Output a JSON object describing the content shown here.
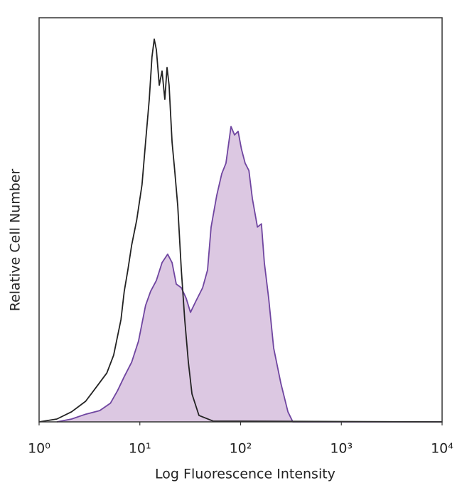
{
  "chart_data": {
    "type": "area",
    "xlabel": "Log Fluorescence Intensity",
    "ylabel": "Relative Cell Number",
    "xscale": "log",
    "xlim": [
      1,
      10000
    ],
    "xticks": [
      {
        "value": 1,
        "label": "10⁰"
      },
      {
        "value": 10,
        "label": "10¹"
      },
      {
        "value": 100,
        "label": "10²"
      },
      {
        "value": 1000,
        "label": "10³"
      },
      {
        "value": 10000,
        "label": "10⁴"
      }
    ],
    "ylim": [
      0,
      100
    ],
    "series": [
      {
        "color": "#6f45a0",
        "fill": "#dcc8e2",
        "x": [
          1.5,
          2.1,
          2.9,
          4.0,
          5.1,
          6.0,
          7.0,
          8.3,
          9.7,
          11.4,
          12.8,
          14.6,
          16.6,
          18.9,
          20.9,
          23.0,
          25.8,
          28.8,
          31.8,
          35.7,
          42.0,
          47.0,
          51.0,
          58.0,
          65.0,
          71.6,
          80.3,
          87.1,
          94.4,
          102,
          111,
          121,
          131,
          147,
          161,
          172,
          190,
          213,
          251,
          295,
          330,
          10000
        ],
        "values": [
          0,
          0.7,
          1.9,
          2.8,
          4.6,
          7.7,
          11.2,
          14.8,
          20.0,
          28.8,
          32.3,
          35.0,
          39.4,
          41.5,
          39.4,
          34.1,
          33.2,
          30.6,
          27.1,
          29.7,
          33.2,
          37.6,
          48.2,
          56.1,
          61.4,
          64.0,
          73.1,
          71.0,
          71.9,
          67.5,
          64.0,
          62.2,
          55.2,
          48.2,
          49.0,
          39.4,
          30.6,
          18.3,
          9.5,
          2.5,
          0,
          0
        ]
      },
      {
        "color": "#222222",
        "fill": "none",
        "x": [
          1,
          1.5,
          2.1,
          2.9,
          3.7,
          4.7,
          5.5,
          6.5,
          7.0,
          7.6,
          8.3,
          9.3,
          10.5,
          11.4,
          12.4,
          13.2,
          13.9,
          14.6,
          15.6,
          16.6,
          17.7,
          18.6,
          19.5,
          20.9,
          22.2,
          23.8,
          25.8,
          27.9,
          30.3,
          32.9,
          38.6,
          53.5,
          10000
        ],
        "values": [
          0,
          0.7,
          2.5,
          5.1,
          8.6,
          12.1,
          16.5,
          25.3,
          32.3,
          37.6,
          43.8,
          49.9,
          58.7,
          69.2,
          79.8,
          90.3,
          94.7,
          92.1,
          83.3,
          86.8,
          79.8,
          87.7,
          83.3,
          69.2,
          62.2,
          53.4,
          37.6,
          25.3,
          14.8,
          6.9,
          1.6,
          0.2,
          0
        ]
      }
    ]
  }
}
